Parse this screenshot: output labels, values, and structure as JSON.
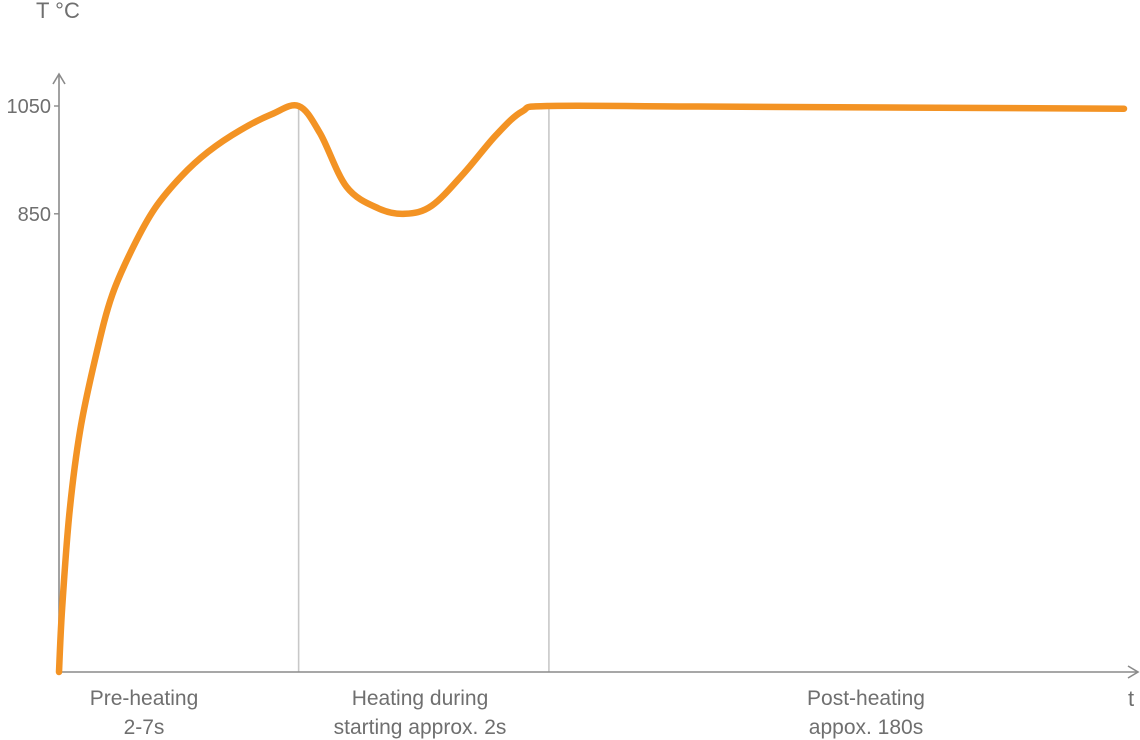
{
  "chart_data": {
    "type": "line",
    "title": "",
    "ylabel": "T °C",
    "xlabel": "t",
    "ylim": [
      0,
      1100
    ],
    "xlim": [
      0,
      1
    ],
    "grid": false,
    "legend": "none",
    "y_ticks": [
      {
        "value": 1050,
        "label": "1050"
      },
      {
        "value": 850,
        "label": "850"
      }
    ],
    "phases": [
      {
        "label_lines": [
          "Pre-heating",
          "2-7s"
        ],
        "start": 0.0,
        "end": 0.225
      },
      {
        "label_lines": [
          "Heating during",
          "starting approx. 2s"
        ],
        "start": 0.225,
        "end": 0.46
      },
      {
        "label_lines": [
          "Post-heating",
          "appox. 180s"
        ],
        "start": 0.46,
        "end": 1.0
      }
    ],
    "series": [
      {
        "color": "#f39324",
        "x": [
          0.0,
          0.003,
          0.01,
          0.02,
          0.035,
          0.05,
          0.07,
          0.09,
          0.115,
          0.14,
          0.17,
          0.2,
          0.225,
          0.245,
          0.27,
          0.3,
          0.325,
          0.35,
          0.38,
          0.41,
          0.435,
          0.46,
          0.6,
          0.8,
          1.0
        ],
        "y": [
          0,
          120,
          300,
          450,
          590,
          700,
          790,
          860,
          920,
          965,
          1005,
          1035,
          1050,
          1000,
          900,
          860,
          850,
          865,
          925,
          995,
          1040,
          1050,
          1049,
          1047,
          1045
        ]
      }
    ]
  }
}
